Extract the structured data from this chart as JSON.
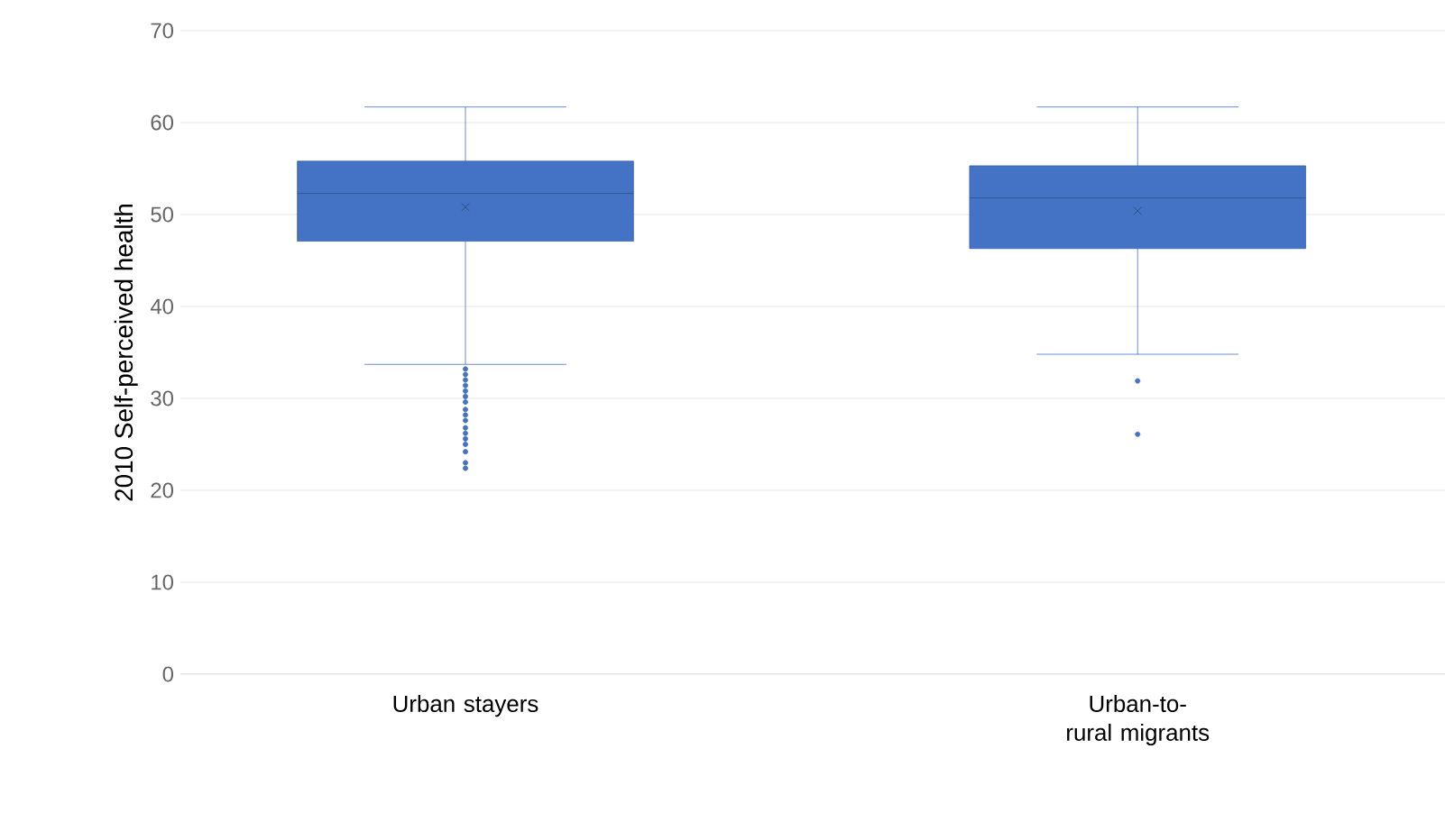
{
  "chart_data": {
    "type": "box",
    "ylabel": "2010 Self-perceived health",
    "categories": [
      "Urban stayers",
      "Urban-to-rural migrants"
    ],
    "boxes": [
      {
        "low": 33.7,
        "q1": 47.1,
        "median": 52.3,
        "q3": 55.8,
        "high": 61.7,
        "mean": 50.8,
        "outliers": [
          33.2,
          32.6,
          32.0,
          31.4,
          30.8,
          30.2,
          29.6,
          28.8,
          28.2,
          27.6,
          26.8,
          26.2,
          25.6,
          25.0,
          24.2,
          23.0,
          22.4
        ]
      },
      {
        "low": 34.8,
        "q1": 46.3,
        "median": 51.8,
        "q3": 55.3,
        "high": 61.7,
        "mean": 50.4,
        "outliers": [
          31.9,
          26.1
        ]
      }
    ],
    "color": "#4472c4",
    "ylim": [
      0,
      70
    ],
    "yticks": [
      0,
      10,
      20,
      30,
      40,
      50,
      60,
      70
    ],
    "grid": "y"
  }
}
